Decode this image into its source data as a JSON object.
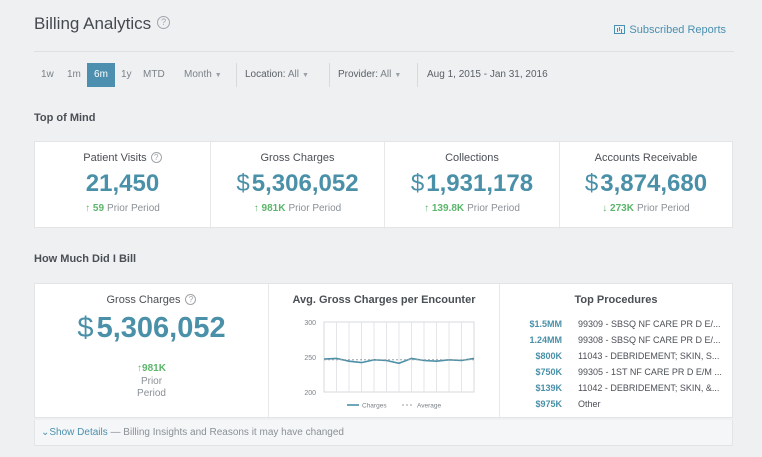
{
  "header": {
    "title": "Billing Analytics",
    "help_glyph": "?",
    "subscribed_reports": "Subscribed Reports"
  },
  "filters": {
    "ranges": [
      "1w",
      "1m",
      "6m",
      "1y",
      "MTD"
    ],
    "active_range": "6m",
    "granularity": "Month",
    "location_label": "Location:",
    "location_value": "All",
    "provider_label": "Provider:",
    "provider_value": "All",
    "date_range": "Aug 1, 2015 - Jan 31, 2016"
  },
  "top_of_mind": {
    "title": "Top of Mind",
    "kpis": [
      {
        "label": "Patient Visits",
        "currency": "",
        "value": "21,450",
        "direction": "up",
        "change": "59",
        "prior": "Prior Period"
      },
      {
        "label": "Gross Charges",
        "currency": "$",
        "value": "5,306,052",
        "direction": "up",
        "change": "981K",
        "prior": "Prior Period"
      },
      {
        "label": "Collections",
        "currency": "$",
        "value": "1,931,178",
        "direction": "up",
        "change": "139.8K",
        "prior": "Prior Period"
      },
      {
        "label": "Accounts Receivable",
        "currency": "$",
        "value": "3,874,680",
        "direction": "down",
        "change": "273K",
        "prior": "Prior Period"
      }
    ]
  },
  "how_much": {
    "title": "How Much Did I Bill",
    "gross": {
      "label": "Gross Charges",
      "currency": "$",
      "value": "5,306,052",
      "change": "981K",
      "prior_line1": "Prior",
      "prior_line2": "Period"
    },
    "avg_title": "Avg. Gross Charges per Encounter",
    "top_title": "Top Procedures",
    "procedures": [
      {
        "amount": "$1.5MM",
        "code": "99309 - SBSQ NF CARE PR D E/..."
      },
      {
        "amount": "1.24MM",
        "code": "99308 - SBSQ NF CARE PR D E/..."
      },
      {
        "amount": "$800K",
        "code": "11043 - DEBRIDEMENT; SKIN, S..."
      },
      {
        "amount": "$750K",
        "code": "99305 - 1ST NF CARE PR D E/M ..."
      },
      {
        "amount": "$139K",
        "code": "11042 - DEBRIDEMENT; SKIN, &..."
      },
      {
        "amount": "$975K",
        "code": "Other"
      }
    ]
  },
  "chart_data": {
    "type": "line",
    "title": "Avg. Gross Charges per Encounter",
    "yticks": [
      "300",
      "250",
      "200"
    ],
    "ylim": [
      200,
      300
    ],
    "x": [
      1,
      2,
      3,
      4,
      5,
      6,
      7,
      8,
      9,
      10,
      11,
      12,
      13
    ],
    "series": [
      {
        "name": "Charges",
        "values": [
          247,
          248,
          244,
          242,
          246,
          245,
          241,
          248,
          245,
          244,
          246,
          245,
          248
        ]
      },
      {
        "name": "Average",
        "values": [
          246,
          246,
          246,
          246,
          246,
          246,
          246,
          246,
          246,
          246,
          246,
          246,
          246
        ]
      }
    ],
    "legend_position": "bottom",
    "grid": true,
    "colors": {
      "Charges": "#4a90a8",
      "Average": "#9aa0a6"
    }
  },
  "footer": {
    "link": "Show Details",
    "text": " — Billing Insights and Reasons it may have changed"
  },
  "colors": {
    "accent": "#4a90a8",
    "active_tab": "#4c8fae",
    "positive": "#5bb56a"
  }
}
